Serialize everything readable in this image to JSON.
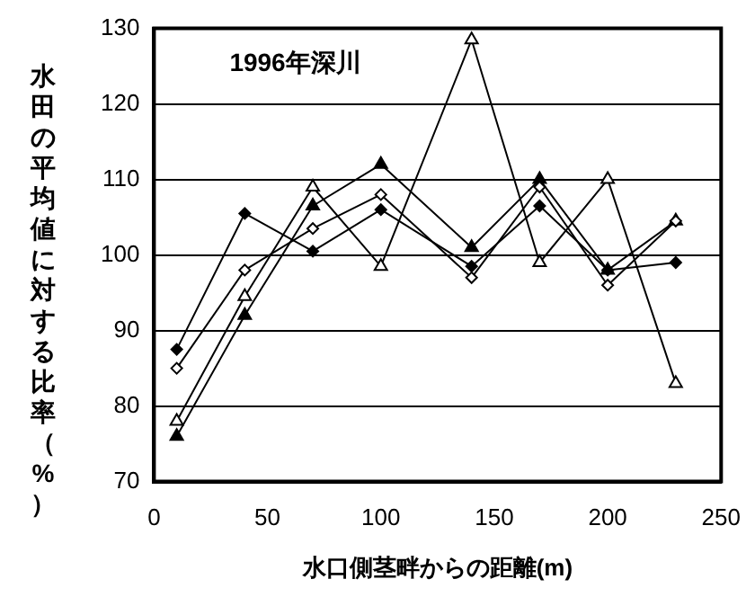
{
  "chart_data": {
    "type": "line",
    "title": "1996年深川",
    "xlabel": "水口側茎畔からの距離(m)",
    "ylabel": "水田の平均値に対する比率（%）",
    "x": [
      10,
      40,
      70,
      100,
      140,
      170,
      200,
      230
    ],
    "series": [
      {
        "color": "#000000",
        "marker": "diamond",
        "values": [
          87.5,
          105.5,
          100.5,
          106,
          98.5,
          106.5,
          98,
          99
        ]
      },
      {
        "color": "#000000",
        "marker": "diamond",
        "values": [
          85,
          98,
          103.5,
          108,
          97,
          109,
          96,
          104.5
        ]
      },
      {
        "color": "#000000",
        "marker": "triangle",
        "values": [
          76,
          92,
          106.5,
          112,
          101,
          110,
          98,
          104.5
        ]
      },
      {
        "color": "#000000",
        "marker": "triangle",
        "values": [
          78,
          94.5,
          109,
          98.5,
          128.5,
          99,
          110,
          83
        ]
      }
    ],
    "xlim": [
      0,
      250
    ],
    "xticks": [
      0,
      50,
      100,
      150,
      200,
      250
    ],
    "ylim": [
      70,
      130
    ],
    "yticks": [
      70,
      80,
      90,
      100,
      110,
      120,
      130
    ],
    "grid": "y"
  }
}
